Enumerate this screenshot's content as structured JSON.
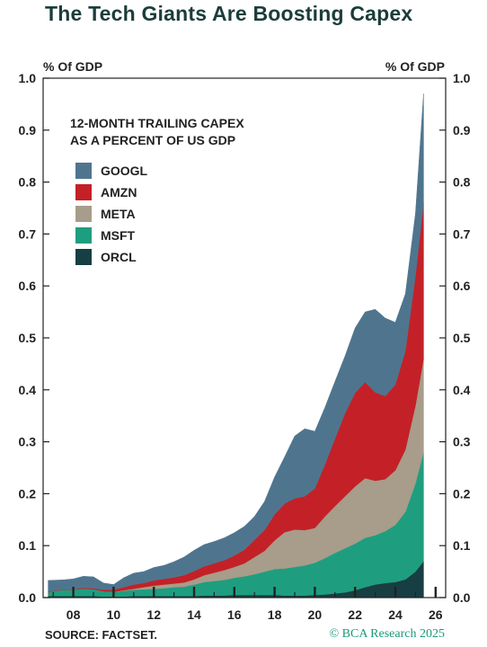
{
  "title": "The Tech Giants Are Boosting Capex",
  "left_axis_unit": "% Of GDP",
  "right_axis_unit": "% Of GDP",
  "legend_title": "12-MONTH TRAILING CAPEX\nAS A PERCENT OF US GDP",
  "source": "SOURCE: FACTSET.",
  "credit": "© BCA Research 2025",
  "chart_data": {
    "type": "area",
    "stacked": true,
    "title": "The Tech Giants Are Boosting Capex",
    "subtitle": "12-MONTH TRAILING CAPEX AS A PERCENT OF US GDP",
    "ylabel": "% Of GDP",
    "ylim": [
      0,
      1.0
    ],
    "xlim": [
      2006.5,
      2026.5
    ],
    "y_ticks": [
      "0.0",
      "0.1",
      "0.2",
      "0.3",
      "0.4",
      "0.5",
      "0.6",
      "0.7",
      "0.8",
      "0.9",
      "1.0"
    ],
    "x_ticks": [
      "08",
      "10",
      "12",
      "14",
      "16",
      "18",
      "20",
      "22",
      "24",
      "26"
    ],
    "x_tick_values": [
      2008,
      2010,
      2012,
      2014,
      2016,
      2018,
      2020,
      2022,
      2024,
      2026
    ],
    "legend_position": "top-left",
    "x": [
      2006.75,
      2007.5,
      2008.0,
      2008.5,
      2009.0,
      2009.5,
      2010.0,
      2010.5,
      2011.0,
      2011.5,
      2012.0,
      2012.5,
      2013.0,
      2013.5,
      2014.0,
      2014.5,
      2015.0,
      2015.5,
      2016.0,
      2016.5,
      2017.0,
      2017.5,
      2018.0,
      2018.5,
      2019.0,
      2019.5,
      2020.0,
      2020.5,
      2021.0,
      2021.5,
      2022.0,
      2022.5,
      2023.0,
      2023.5,
      2024.0,
      2024.5,
      2025.0,
      2025.4
    ],
    "series": [
      {
        "name": "ORCL",
        "color": "#173e42",
        "values": [
          0.003,
          0.003,
          0.003,
          0.003,
          0.003,
          0.002,
          0.002,
          0.002,
          0.003,
          0.003,
          0.003,
          0.003,
          0.003,
          0.003,
          0.003,
          0.004,
          0.004,
          0.004,
          0.005,
          0.005,
          0.005,
          0.005,
          0.005,
          0.004,
          0.004,
          0.004,
          0.005,
          0.006,
          0.008,
          0.01,
          0.014,
          0.02,
          0.025,
          0.028,
          0.03,
          0.035,
          0.05,
          0.07
        ]
      },
      {
        "name": "MSFT",
        "color": "#1e9e7f",
        "values": [
          0.007,
          0.012,
          0.012,
          0.014,
          0.013,
          0.01,
          0.009,
          0.011,
          0.012,
          0.013,
          0.014,
          0.015,
          0.017,
          0.018,
          0.022,
          0.026,
          0.028,
          0.03,
          0.033,
          0.036,
          0.04,
          0.045,
          0.05,
          0.052,
          0.055,
          0.058,
          0.062,
          0.07,
          0.078,
          0.085,
          0.09,
          0.095,
          0.095,
          0.1,
          0.11,
          0.13,
          0.17,
          0.21
        ]
      },
      {
        "name": "META",
        "color": "#a89c8a",
        "values": [
          0.0,
          0.0,
          0.0,
          0.0,
          0.0,
          0.0,
          0.0,
          0.001,
          0.002,
          0.004,
          0.006,
          0.007,
          0.007,
          0.008,
          0.01,
          0.013,
          0.016,
          0.019,
          0.021,
          0.025,
          0.033,
          0.04,
          0.055,
          0.07,
          0.072,
          0.068,
          0.067,
          0.08,
          0.09,
          0.1,
          0.11,
          0.115,
          0.105,
          0.1,
          0.105,
          0.12,
          0.15,
          0.18
        ]
      },
      {
        "name": "AMZN",
        "color": "#c32127",
        "values": [
          0.001,
          0.001,
          0.001,
          0.002,
          0.002,
          0.003,
          0.004,
          0.006,
          0.008,
          0.008,
          0.01,
          0.011,
          0.012,
          0.014,
          0.016,
          0.017,
          0.018,
          0.019,
          0.022,
          0.026,
          0.033,
          0.04,
          0.05,
          0.055,
          0.06,
          0.065,
          0.076,
          0.1,
          0.13,
          0.16,
          0.18,
          0.185,
          0.17,
          0.16,
          0.165,
          0.19,
          0.25,
          0.3
        ]
      },
      {
        "name": "GOOGL",
        "color": "#4f758e",
        "values": [
          0.022,
          0.018,
          0.02,
          0.022,
          0.022,
          0.013,
          0.01,
          0.018,
          0.022,
          0.022,
          0.025,
          0.026,
          0.03,
          0.035,
          0.04,
          0.042,
          0.042,
          0.043,
          0.044,
          0.045,
          0.045,
          0.055,
          0.072,
          0.09,
          0.12,
          0.13,
          0.11,
          0.11,
          0.11,
          0.11,
          0.125,
          0.135,
          0.16,
          0.15,
          0.12,
          0.11,
          0.12,
          0.21
        ]
      }
    ]
  }
}
